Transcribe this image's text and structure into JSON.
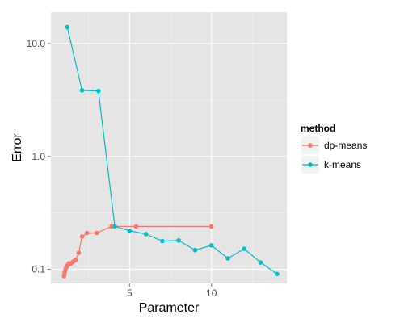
{
  "chart_data": {
    "type": "line",
    "xlabel": "Parameter",
    "ylabel": "Error",
    "x_scale": "linear",
    "y_scale": "log10",
    "xlim": [
      0.2,
      14.6
    ],
    "ylim": [
      0.075,
      19
    ],
    "x_ticks": [
      5,
      10
    ],
    "x_tick_labels": [
      "5",
      "10"
    ],
    "y_ticks": [
      0.1,
      1.0,
      10.0
    ],
    "y_tick_labels": [
      "0.1",
      "1.0",
      "10.0"
    ],
    "grid": true,
    "legend": {
      "title": "method",
      "position": "right"
    },
    "series": [
      {
        "name": "dp-means",
        "color": "#F8766D",
        "x": [
          1.0,
          1.02,
          1.05,
          1.1,
          1.15,
          1.2,
          1.3,
          1.4,
          1.5,
          1.6,
          1.7,
          1.9,
          2.1,
          2.4,
          3.0,
          3.9,
          5.4,
          10.0
        ],
        "y": [
          0.087,
          0.09,
          0.095,
          0.1,
          0.105,
          0.108,
          0.113,
          0.112,
          0.115,
          0.118,
          0.121,
          0.14,
          0.195,
          0.21,
          0.21,
          0.24,
          0.24,
          0.24
        ]
      },
      {
        "name": "k-means",
        "color": "#00BFC4",
        "x": [
          1.2,
          2.1,
          3.1,
          4.1,
          5.0,
          6.0,
          7.0,
          8.0,
          9.0,
          10.0,
          11.0,
          12.0,
          13.0,
          14.0
        ],
        "y": [
          14.0,
          3.85,
          3.8,
          0.24,
          0.22,
          0.205,
          0.178,
          0.18,
          0.148,
          0.163,
          0.125,
          0.152,
          0.115,
          0.091
        ]
      }
    ]
  }
}
